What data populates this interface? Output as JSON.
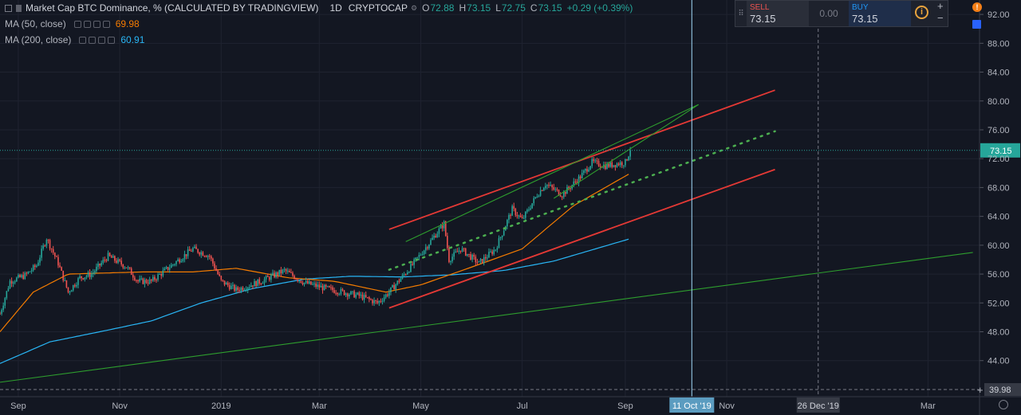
{
  "header": {
    "title": "Market Cap BTC Dominance, % (CALCULATED BY TRADINGVIEW)",
    "interval": "1D",
    "exchange": "CRYPTOCAP",
    "open_key": "O",
    "open": "72.88",
    "high_key": "H",
    "high": "73.15",
    "low_key": "L",
    "low": "72.75",
    "close_key": "C",
    "close": "73.15",
    "change": "+0.29 (+0.39%)",
    "ma50_label": "MA (50, close)",
    "ma50_value": "69.98",
    "ma200_label": "MA (200, close)",
    "ma200_value": "60.91"
  },
  "trade": {
    "sell_label": "SELL",
    "sell_price": "73.15",
    "spread": "0.00",
    "buy_label": "BUY",
    "buy_price": "73.15",
    "plus": "+",
    "minus": "−"
  },
  "colors": {
    "background": "#131722",
    "up": "#26a69a",
    "down": "#ef5350",
    "ma50": "#f57c00",
    "ma200": "#29b6f6",
    "channel": "#e53935",
    "trend_green": "#2e9e2e",
    "dotted_mid": "#4caf50",
    "grid": "#1f2330",
    "crosshair": "#9fd6f5"
  },
  "chart_data": {
    "type": "candlestick",
    "title": "Market Cap BTC Dominance, % (CALCULATED BY TRADINGVIEW)",
    "x_range": [
      "2018-08-21",
      "2020-04-01"
    ],
    "ylim": [
      39.0,
      94.0
    ],
    "y_ticks": [
      "92.00",
      "88.00",
      "84.00",
      "80.00",
      "76.00",
      "72.00",
      "68.00",
      "64.00",
      "60.00",
      "56.00",
      "52.00",
      "48.00",
      "44.00"
    ],
    "x_ticks": [
      {
        "label": "Sep",
        "date": "2018-09-01"
      },
      {
        "label": "Nov",
        "date": "2018-11-01"
      },
      {
        "label": "2019",
        "date": "2019-01-01"
      },
      {
        "label": "Mar",
        "date": "2019-03-01"
      },
      {
        "label": "May",
        "date": "2019-05-01"
      },
      {
        "label": "Jul",
        "date": "2019-07-01"
      },
      {
        "label": "Sep",
        "date": "2019-09-01"
      },
      {
        "label": "Nov",
        "date": "2019-11-01"
      },
      {
        "label": "Mar",
        "date": "2020-03-01"
      }
    ],
    "last_price": "73.15",
    "bottom_price_label": "39.98",
    "crosshair_date_label": "11 Oct '19",
    "marker_date_label": "26 Dec '19",
    "price_key_points": [
      {
        "date": "2018-08-21",
        "close": 50.5
      },
      {
        "date": "2018-08-27",
        "close": 55.0
      },
      {
        "date": "2018-09-05",
        "close": 55.8
      },
      {
        "date": "2018-09-12",
        "close": 57.2
      },
      {
        "date": "2018-09-18",
        "close": 61.0
      },
      {
        "date": "2018-09-25",
        "close": 57.5
      },
      {
        "date": "2018-10-01",
        "close": 53.5
      },
      {
        "date": "2018-10-08",
        "close": 55.5
      },
      {
        "date": "2018-10-15",
        "close": 56.0
      },
      {
        "date": "2018-10-25",
        "close": 58.5
      },
      {
        "date": "2018-11-05",
        "close": 57.0
      },
      {
        "date": "2018-11-12",
        "close": 55.0
      },
      {
        "date": "2018-11-20",
        "close": 55.0
      },
      {
        "date": "2018-12-01",
        "close": 57.0
      },
      {
        "date": "2018-12-15",
        "close": 59.5
      },
      {
        "date": "2018-12-25",
        "close": 58.5
      },
      {
        "date": "2019-01-01",
        "close": 55.0
      },
      {
        "date": "2019-01-10",
        "close": 53.8
      },
      {
        "date": "2019-01-25",
        "close": 55.0
      },
      {
        "date": "2019-02-08",
        "close": 56.5
      },
      {
        "date": "2019-02-20",
        "close": 54.8
      },
      {
        "date": "2019-03-05",
        "close": 54.0
      },
      {
        "date": "2019-03-25",
        "close": 53.0
      },
      {
        "date": "2019-04-05",
        "close": 52.0
      },
      {
        "date": "2019-04-12",
        "close": 53.5
      },
      {
        "date": "2019-04-25",
        "close": 57.0
      },
      {
        "date": "2019-05-05",
        "close": 60.0
      },
      {
        "date": "2019-05-15",
        "close": 63.0
      },
      {
        "date": "2019-05-18",
        "close": 58.0
      },
      {
        "date": "2019-05-25",
        "close": 59.5
      },
      {
        "date": "2019-06-05",
        "close": 57.5
      },
      {
        "date": "2019-06-15",
        "close": 59.5
      },
      {
        "date": "2019-06-25",
        "close": 65.0
      },
      {
        "date": "2019-07-01",
        "close": 63.5
      },
      {
        "date": "2019-07-10",
        "close": 67.0
      },
      {
        "date": "2019-07-15",
        "close": 68.5
      },
      {
        "date": "2019-07-25",
        "close": 67.0
      },
      {
        "date": "2019-08-05",
        "close": 69.5
      },
      {
        "date": "2019-08-12",
        "close": 71.5
      },
      {
        "date": "2019-08-20",
        "close": 71.0
      },
      {
        "date": "2019-09-01",
        "close": 71.5
      },
      {
        "date": "2019-09-04",
        "close": 73.15
      }
    ],
    "ma50_key_points": [
      {
        "date": "2018-08-21",
        "value": 48.0
      },
      {
        "date": "2018-09-10",
        "value": 53.5
      },
      {
        "date": "2018-10-01",
        "value": 56.0
      },
      {
        "date": "2018-11-15",
        "value": 56.3
      },
      {
        "date": "2018-12-15",
        "value": 56.3
      },
      {
        "date": "2019-01-10",
        "value": 56.8
      },
      {
        "date": "2019-02-10",
        "value": 55.5
      },
      {
        "date": "2019-03-10",
        "value": 55.0
      },
      {
        "date": "2019-04-10",
        "value": 53.5
      },
      {
        "date": "2019-05-01",
        "value": 54.5
      },
      {
        "date": "2019-06-01",
        "value": 57.0
      },
      {
        "date": "2019-07-01",
        "value": 59.5
      },
      {
        "date": "2019-08-01",
        "value": 65.5
      },
      {
        "date": "2019-09-04",
        "value": 69.98
      }
    ],
    "ma200_key_points": [
      {
        "date": "2018-08-21",
        "value": 43.6
      },
      {
        "date": "2018-09-20",
        "value": 46.6
      },
      {
        "date": "2018-10-20",
        "value": 48.0
      },
      {
        "date": "2018-11-20",
        "value": 49.5
      },
      {
        "date": "2018-12-20",
        "value": 52.0
      },
      {
        "date": "2019-01-20",
        "value": 54.0
      },
      {
        "date": "2019-02-20",
        "value": 55.3
      },
      {
        "date": "2019-03-20",
        "value": 55.7
      },
      {
        "date": "2019-04-20",
        "value": 55.6
      },
      {
        "date": "2019-05-20",
        "value": 55.9
      },
      {
        "date": "2019-06-20",
        "value": 56.5
      },
      {
        "date": "2019-07-20",
        "value": 57.8
      },
      {
        "date": "2019-09-04",
        "value": 60.91
      }
    ],
    "drawings": [
      {
        "name": "channel-upper",
        "color": "red",
        "from": {
          "date": "2019-04-12",
          "value": 62.2
        },
        "to": {
          "date": "2019-11-30",
          "value": 81.5
        }
      },
      {
        "name": "channel-lower",
        "color": "red",
        "from": {
          "date": "2019-04-12",
          "value": 51.3
        },
        "to": {
          "date": "2019-11-30",
          "value": 70.5
        }
      },
      {
        "name": "channel-mid-dotted",
        "color": "green",
        "from": {
          "date": "2019-04-12",
          "value": 56.6
        },
        "to": {
          "date": "2019-11-30",
          "value": 75.8
        }
      },
      {
        "name": "wedge-upper",
        "color": "green",
        "from": {
          "date": "2019-04-22",
          "value": 60.5
        },
        "to": {
          "date": "2019-10-15",
          "value": 79.5
        }
      },
      {
        "name": "wedge-lower",
        "color": "green",
        "from": {
          "date": "2019-07-20",
          "value": 66.5
        },
        "to": {
          "date": "2019-10-15",
          "value": 79.5
        }
      },
      {
        "name": "long-trendline",
        "color": "green",
        "from": {
          "date": "2018-08-21",
          "value": 41.0
        },
        "to": {
          "date": "2020-03-28",
          "value": 59.0
        }
      }
    ]
  }
}
